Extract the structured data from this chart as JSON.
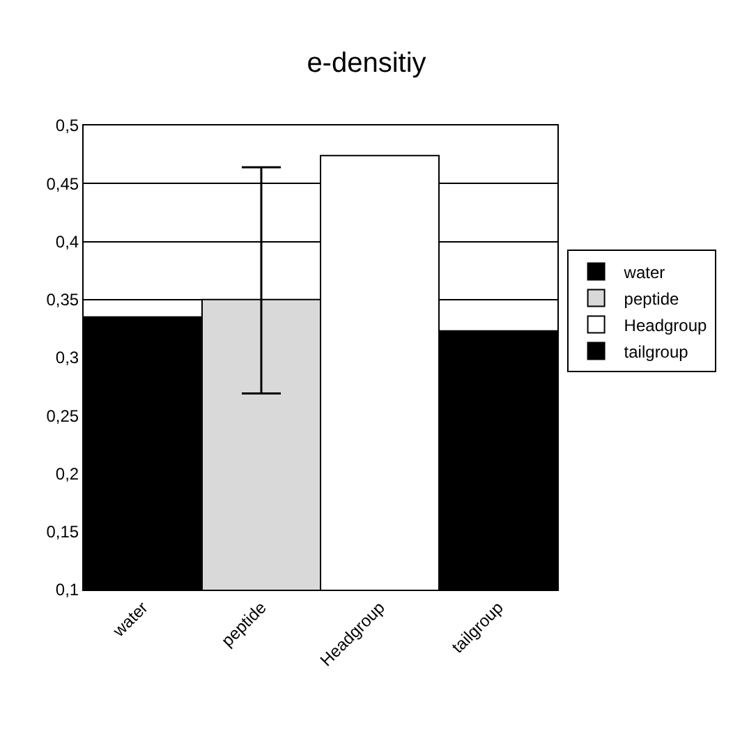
{
  "chart_data": {
    "type": "bar",
    "title": "e-densitiy",
    "categories": [
      "water",
      "peptide",
      "Headgroup",
      "tailgroup"
    ],
    "series": [
      {
        "name": "water",
        "color": "#000000",
        "values": [
          0.335,
          null,
          null,
          null
        ]
      },
      {
        "name": "peptide",
        "color": "#d9d9d9",
        "values": [
          null,
          0.35,
          null,
          null
        ],
        "errors": [
          null,
          [
            0.269,
            0.464
          ],
          null,
          null
        ]
      },
      {
        "name": "Headgroup",
        "color": "#ffffff",
        "values": [
          null,
          null,
          0.474,
          null
        ]
      },
      {
        "name": "tailgroup",
        "color": "#000000",
        "values": [
          null,
          null,
          null,
          0.323
        ]
      }
    ],
    "ylim": [
      0.1,
      0.5
    ],
    "yticks": [
      {
        "value": 0.1,
        "label": "0,1"
      },
      {
        "value": 0.15,
        "label": "0,15"
      },
      {
        "value": 0.2,
        "label": "0,2"
      },
      {
        "value": 0.25,
        "label": "0,25"
      },
      {
        "value": 0.3,
        "label": "0,3"
      },
      {
        "value": 0.35,
        "label": "0,35"
      },
      {
        "value": 0.4,
        "label": "0,4"
      },
      {
        "value": 0.45,
        "label": "0,45"
      },
      {
        "value": 0.5,
        "label": "0,5"
      }
    ],
    "grid": "y",
    "legend": "right"
  }
}
